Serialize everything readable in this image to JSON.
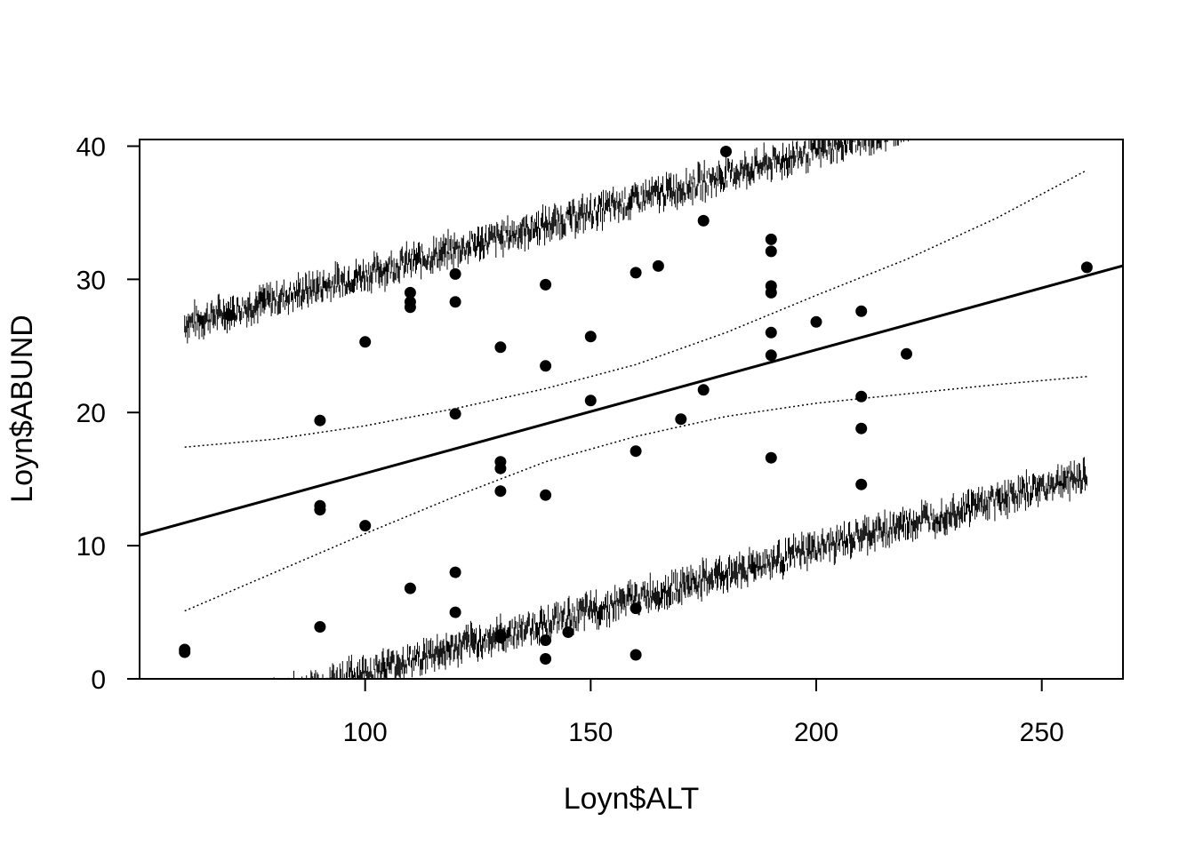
{
  "chart_data": {
    "type": "scatter",
    "title": "",
    "xlabel": "Loyn$ALT",
    "ylabel": "Loyn$ABUND",
    "xlim": [
      50,
      268
    ],
    "ylim": [
      0,
      40.5
    ],
    "xticks": [
      100,
      150,
      200,
      250
    ],
    "yticks": [
      0,
      10,
      20,
      30,
      40
    ],
    "grid": false,
    "legend": "none",
    "colors": {
      "points": "#000000",
      "lines": "#000000",
      "background": "#ffffff"
    },
    "points": [
      {
        "x": 60,
        "y": 2.0
      },
      {
        "x": 60,
        "y": 2.2
      },
      {
        "x": 70,
        "y": 27.3
      },
      {
        "x": 90,
        "y": 19.4
      },
      {
        "x": 90,
        "y": 13.0
      },
      {
        "x": 90,
        "y": 12.7
      },
      {
        "x": 90,
        "y": 3.9
      },
      {
        "x": 100,
        "y": 25.3
      },
      {
        "x": 100,
        "y": 11.5
      },
      {
        "x": 110,
        "y": 29.0
      },
      {
        "x": 110,
        "y": 28.3
      },
      {
        "x": 110,
        "y": 27.9
      },
      {
        "x": 110,
        "y": 6.8
      },
      {
        "x": 120,
        "y": 30.4
      },
      {
        "x": 120,
        "y": 28.3
      },
      {
        "x": 120,
        "y": 19.9
      },
      {
        "x": 120,
        "y": 8.0
      },
      {
        "x": 120,
        "y": 5.0
      },
      {
        "x": 130,
        "y": 24.9
      },
      {
        "x": 130,
        "y": 16.3
      },
      {
        "x": 130,
        "y": 15.8
      },
      {
        "x": 130,
        "y": 14.1
      },
      {
        "x": 130,
        "y": 3.3
      },
      {
        "x": 130,
        "y": 3.1
      },
      {
        "x": 140,
        "y": 29.6
      },
      {
        "x": 140,
        "y": 23.5
      },
      {
        "x": 140,
        "y": 13.8
      },
      {
        "x": 140,
        "y": 2.9
      },
      {
        "x": 140,
        "y": 1.5
      },
      {
        "x": 145,
        "y": 3.5
      },
      {
        "x": 150,
        "y": 25.7
      },
      {
        "x": 150,
        "y": 20.9
      },
      {
        "x": 160,
        "y": 30.5
      },
      {
        "x": 160,
        "y": 17.1
      },
      {
        "x": 160,
        "y": 5.3
      },
      {
        "x": 160,
        "y": 1.8
      },
      {
        "x": 165,
        "y": 31.0
      },
      {
        "x": 170,
        "y": 19.5
      },
      {
        "x": 175,
        "y": 34.4
      },
      {
        "x": 175,
        "y": 21.7
      },
      {
        "x": 180,
        "y": 39.6
      },
      {
        "x": 190,
        "y": 33.0
      },
      {
        "x": 190,
        "y": 32.1
      },
      {
        "x": 190,
        "y": 29.5
      },
      {
        "x": 190,
        "y": 29.0
      },
      {
        "x": 190,
        "y": 26.0
      },
      {
        "x": 190,
        "y": 24.3
      },
      {
        "x": 190,
        "y": 16.6
      },
      {
        "x": 200,
        "y": 26.8
      },
      {
        "x": 210,
        "y": 27.6
      },
      {
        "x": 210,
        "y": 21.2
      },
      {
        "x": 210,
        "y": 18.8
      },
      {
        "x": 210,
        "y": 14.6
      },
      {
        "x": 220,
        "y": 24.4
      },
      {
        "x": 260,
        "y": 30.9
      }
    ],
    "regression_line": {
      "intercept": 6.15,
      "slope": 0.0928
    },
    "confidence_band": {
      "x": [
        60,
        80,
        100,
        120,
        140,
        160,
        180,
        200,
        220,
        240,
        260
      ],
      "upper": [
        17.4,
        18.0,
        19.0,
        20.3,
        21.8,
        23.6,
        26.0,
        28.8,
        31.5,
        34.6,
        38.2
      ],
      "lower": [
        5.1,
        8.0,
        10.9,
        13.7,
        16.3,
        18.2,
        19.7,
        20.7,
        21.4,
        22.1,
        22.7
      ]
    },
    "prediction_band": {
      "x": [
        60,
        260
      ],
      "upper_intercept": 21.1,
      "upper_slope": 0.0928,
      "lower_intercept": -8.8,
      "lower_slope": 0.0928
    }
  }
}
